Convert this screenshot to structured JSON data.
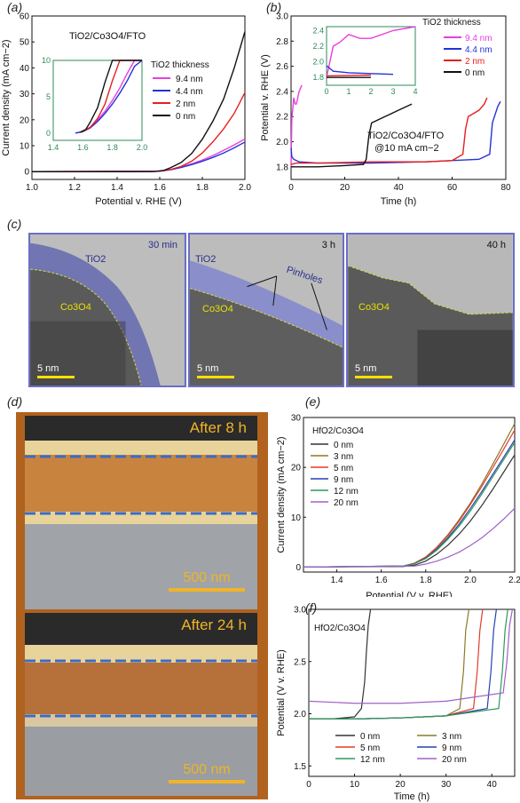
{
  "panels": {
    "a": "(a)",
    "b": "(b)",
    "c": "(c)",
    "d": "(d)",
    "e": "(e)",
    "f": "(f)"
  },
  "tem": {
    "tio2_label": "TiO2",
    "co3o4_label": "Co3O4",
    "pinholes_label": "Pinholes",
    "times": [
      "30 min",
      "3 h",
      "40 h"
    ],
    "scale": "5 nm"
  },
  "sem": {
    "labels": [
      "After 8 h",
      "After 24 h"
    ],
    "scale": "500 nm"
  },
  "chart_data": [
    {
      "id": "a",
      "type": "line",
      "title": "TiO2/Co3O4/FTO",
      "xlabel": "Potential v. RHE (V)",
      "ylabel": "Current density (mA cm−2)",
      "xlim": [
        1.0,
        2.0
      ],
      "ylim": [
        -3,
        60
      ],
      "xticks": [
        "1.0",
        "1.2",
        "1.4",
        "1.6",
        "1.8",
        "2.0"
      ],
      "yticks": [
        "0",
        "10",
        "20",
        "30",
        "40",
        "50",
        "60"
      ],
      "legend_title": "TiO2 thickness",
      "legend_position": "right",
      "series": [
        {
          "name": "9.4 nm",
          "color": "#e83fdc",
          "x": [
            1.0,
            1.55,
            1.6,
            1.65,
            1.7,
            1.75,
            1.8,
            1.85,
            1.9,
            1.95,
            2.0
          ],
          "y": [
            0,
            0,
            0.2,
            0.8,
            1.8,
            3.0,
            4.5,
            6.2,
            8.2,
            10.3,
            12.6
          ]
        },
        {
          "name": "4.4 nm",
          "color": "#2432d8",
          "x": [
            1.0,
            1.55,
            1.6,
            1.65,
            1.7,
            1.75,
            1.8,
            1.85,
            1.9,
            1.95,
            2.0
          ],
          "y": [
            0,
            0,
            0.2,
            0.7,
            1.6,
            2.7,
            4.0,
            5.5,
            7.2,
            9.2,
            11.4
          ]
        },
        {
          "name": "2 nm",
          "color": "#e81e1e",
          "x": [
            1.0,
            1.6,
            1.65,
            1.7,
            1.75,
            1.8,
            1.85,
            1.9,
            1.95,
            2.0
          ],
          "y": [
            0,
            0.2,
            0.8,
            2.0,
            4.0,
            7.2,
            11.5,
            16.5,
            22.5,
            30.5
          ]
        },
        {
          "name": "0 nm",
          "color": "#111111",
          "x": [
            1.0,
            1.58,
            1.62,
            1.65,
            1.7,
            1.75,
            1.8,
            1.85,
            1.9,
            1.95,
            2.0
          ],
          "y": [
            0,
            0.1,
            0.5,
            1.5,
            3.5,
            7.0,
            12.5,
            19.5,
            28.0,
            40.0,
            54.0
          ]
        }
      ],
      "inset": {
        "xlim": [
          1.4,
          2.0
        ],
        "ylim": [
          -1,
          10
        ],
        "xticks": [
          "1.4",
          "1.6",
          "1.8",
          "2.0"
        ],
        "yticks": [
          "0",
          "5",
          "10"
        ]
      }
    },
    {
      "id": "b",
      "type": "line",
      "xlabel": "Time (h)",
      "ylabel": "Potential v. RHE (V)",
      "xlim": [
        0,
        80
      ],
      "ylim": [
        1.7,
        3.0
      ],
      "xticks": [
        "0",
        "20",
        "40",
        "60",
        "80"
      ],
      "yticks": [
        "1.8",
        "2.0",
        "2.2",
        "2.4",
        "2.6",
        "2.8",
        "3.0"
      ],
      "annotation": [
        "TiO2/Co3O4/FTO",
        "@10 mA cm−2"
      ],
      "legend_title": "TiO2 thickness",
      "legend_position": "top-right",
      "series": [
        {
          "name": "9.4 nm",
          "color": "#e83fdc",
          "x": [
            0,
            0.3,
            0.6,
            1.0,
            1.5,
            2.0,
            3.0,
            4.0
          ],
          "y": [
            1.8,
            2.2,
            2.25,
            2.35,
            2.3,
            2.3,
            2.4,
            2.45
          ]
        },
        {
          "name": "4.4 nm",
          "color": "#2432d8",
          "x": [
            0,
            0.3,
            1,
            3,
            10,
            30,
            50,
            70,
            74,
            75,
            77,
            78
          ],
          "y": [
            1.95,
            1.88,
            1.86,
            1.84,
            1.83,
            1.83,
            1.84,
            1.86,
            1.9,
            2.15,
            2.28,
            2.32
          ]
        },
        {
          "name": "2 nm",
          "color": "#e81e1e",
          "x": [
            0,
            2,
            10,
            30,
            50,
            60,
            64,
            65,
            66,
            70,
            72,
            73
          ],
          "y": [
            1.82,
            1.83,
            1.83,
            1.84,
            1.84,
            1.85,
            1.9,
            2.1,
            2.2,
            2.25,
            2.3,
            2.35
          ]
        },
        {
          "name": "0 nm",
          "color": "#111111",
          "x": [
            0,
            2,
            10,
            20,
            27,
            28,
            29,
            30,
            35,
            40,
            45
          ],
          "y": [
            1.8,
            1.8,
            1.8,
            1.81,
            1.82,
            1.86,
            2.05,
            2.15,
            2.2,
            2.25,
            2.3
          ]
        }
      ],
      "inset": {
        "xlim": [
          0,
          4
        ],
        "ylim": [
          1.7,
          2.45
        ],
        "xticks": [
          "0",
          "1",
          "2",
          "3",
          "4"
        ],
        "yticks": [
          "1.8",
          "2.0",
          "2.2",
          "2.4"
        ]
      }
    },
    {
      "id": "e",
      "type": "line",
      "legend_title": "HfO2/Co3O4",
      "xlabel": "Potential (V v. RHE)",
      "ylabel": "Current density (mA cm−2)",
      "xlim": [
        1.25,
        2.2
      ],
      "ylim": [
        -1,
        30
      ],
      "xticks": [
        "1.4",
        "1.6",
        "1.8",
        "2.0",
        "2.2"
      ],
      "yticks": [
        "0",
        "10",
        "20",
        "30"
      ],
      "legend_position": "top-left",
      "series": [
        {
          "name": "0 nm",
          "color": "#333333",
          "x": [
            1.25,
            1.7,
            1.75,
            1.8,
            1.85,
            1.9,
            1.95,
            2.0,
            2.05,
            2.1,
            2.15,
            2.2
          ],
          "y": [
            0,
            0.1,
            0.4,
            1.2,
            2.6,
            4.4,
            6.6,
            9.2,
            12.2,
            15.5,
            19.0,
            22.5
          ]
        },
        {
          "name": "3 nm",
          "color": "#8a7a2a",
          "x": [
            1.25,
            1.7,
            1.75,
            1.8,
            1.85,
            1.9,
            1.95,
            2.0,
            2.05,
            2.1,
            2.15,
            2.2
          ],
          "y": [
            0,
            0.2,
            0.8,
            2.0,
            4.0,
            6.5,
            9.5,
            12.8,
            16.5,
            20.5,
            24.6,
            28.8
          ]
        },
        {
          "name": "5 nm",
          "color": "#e53a2a",
          "x": [
            1.25,
            1.7,
            1.75,
            1.8,
            1.85,
            1.9,
            1.95,
            2.0,
            2.05,
            2.1,
            2.15,
            2.2
          ],
          "y": [
            0,
            0.2,
            0.8,
            2.0,
            3.9,
            6.3,
            9.2,
            12.5,
            16.0,
            19.8,
            23.6,
            27.5
          ]
        },
        {
          "name": "9 nm",
          "color": "#2a3fb0",
          "x": [
            1.25,
            1.7,
            1.75,
            1.8,
            1.85,
            1.9,
            1.95,
            2.0,
            2.05,
            2.1,
            2.15,
            2.2
          ],
          "y": [
            0,
            0.2,
            0.7,
            1.8,
            3.6,
            5.9,
            8.6,
            11.7,
            15.0,
            18.5,
            22.0,
            25.5
          ]
        },
        {
          "name": "12 nm",
          "color": "#2a9a5a",
          "x": [
            1.25,
            1.7,
            1.75,
            1.8,
            1.85,
            1.9,
            1.95,
            2.0,
            2.05,
            2.1,
            2.15,
            2.2
          ],
          "y": [
            0,
            0.2,
            0.7,
            1.7,
            3.4,
            5.6,
            8.2,
            11.2,
            14.5,
            18.0,
            21.5,
            25.0
          ]
        },
        {
          "name": "20 nm",
          "color": "#a060c8",
          "x": [
            1.25,
            1.75,
            1.8,
            1.85,
            1.9,
            1.95,
            2.0,
            2.05,
            2.1,
            2.15,
            2.2
          ],
          "y": [
            0,
            0.2,
            0.6,
            1.2,
            2.0,
            3.0,
            4.3,
            5.8,
            7.6,
            9.6,
            11.8
          ]
        }
      ]
    },
    {
      "id": "f",
      "type": "line",
      "legend_title": "HfO2/Co3O4",
      "xlabel": "Time (h)",
      "ylabel": "Potential (V v. RHE)",
      "xlim": [
        0,
        45
      ],
      "ylim": [
        1.4,
        3.0
      ],
      "xticks": [
        "0",
        "10",
        "20",
        "30",
        "40"
      ],
      "yticks": [
        "1.5",
        "2.0",
        "2.5",
        "3.0"
      ],
      "legend_position": "bottom",
      "series": [
        {
          "name": "0 nm",
          "color": "#333333",
          "x": [
            0,
            5,
            10,
            11.5,
            12.2,
            12.6,
            13.0,
            13.5
          ],
          "y": [
            1.95,
            1.95,
            1.97,
            2.05,
            2.3,
            2.6,
            2.85,
            3.0
          ]
        },
        {
          "name": "3 nm",
          "color": "#8a7a2a",
          "x": [
            0,
            10,
            20,
            30,
            33,
            33.8,
            34.3,
            35.0
          ],
          "y": [
            1.95,
            1.95,
            1.96,
            1.98,
            2.05,
            2.4,
            2.8,
            3.0
          ]
        },
        {
          "name": "5 nm",
          "color": "#e53a2a",
          "x": [
            0,
            10,
            20,
            30,
            36,
            36.8,
            37.4,
            38.0
          ],
          "y": [
            1.95,
            1.95,
            1.96,
            1.98,
            2.05,
            2.4,
            2.8,
            3.0
          ]
        },
        {
          "name": "9 nm",
          "color": "#2a3fb0",
          "x": [
            0,
            10,
            20,
            30,
            39,
            39.8,
            40.4,
            41.0
          ],
          "y": [
            1.95,
            1.95,
            1.96,
            1.98,
            2.05,
            2.4,
            2.8,
            3.0
          ]
        },
        {
          "name": "12 nm",
          "color": "#2a9a5a",
          "x": [
            0,
            10,
            20,
            30,
            41.5,
            42.3,
            42.9,
            43.5
          ],
          "y": [
            1.95,
            1.95,
            1.96,
            1.98,
            2.05,
            2.4,
            2.8,
            3.0
          ]
        },
        {
          "name": "20 nm",
          "color": "#a060c8",
          "x": [
            0,
            10,
            20,
            30,
            42.5,
            43.3,
            43.9,
            44.5
          ],
          "y": [
            2.12,
            2.1,
            2.1,
            2.12,
            2.2,
            2.5,
            2.85,
            3.0
          ]
        }
      ]
    }
  ]
}
